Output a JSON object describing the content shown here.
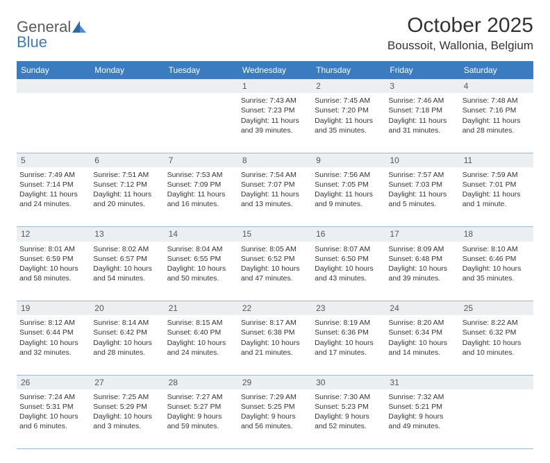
{
  "logo": {
    "part1": "General",
    "part2": "Blue"
  },
  "title": "October 2025",
  "location": "Boussoit, Wallonia, Belgium",
  "colors": {
    "header_bg": "#3b7bbf",
    "header_text": "#ffffff",
    "daynum_bg": "#eceff2",
    "border": "#9db8d4",
    "text": "#333333"
  },
  "day_names": [
    "Sunday",
    "Monday",
    "Tuesday",
    "Wednesday",
    "Thursday",
    "Friday",
    "Saturday"
  ],
  "weeks": [
    {
      "nums": [
        "",
        "",
        "",
        "1",
        "2",
        "3",
        "4"
      ],
      "cells": [
        {
          "lines": []
        },
        {
          "lines": []
        },
        {
          "lines": []
        },
        {
          "lines": [
            "Sunrise: 7:43 AM",
            "Sunset: 7:23 PM",
            "Daylight: 11 hours",
            "and 39 minutes."
          ]
        },
        {
          "lines": [
            "Sunrise: 7:45 AM",
            "Sunset: 7:20 PM",
            "Daylight: 11 hours",
            "and 35 minutes."
          ]
        },
        {
          "lines": [
            "Sunrise: 7:46 AM",
            "Sunset: 7:18 PM",
            "Daylight: 11 hours",
            "and 31 minutes."
          ]
        },
        {
          "lines": [
            "Sunrise: 7:48 AM",
            "Sunset: 7:16 PM",
            "Daylight: 11 hours",
            "and 28 minutes."
          ]
        }
      ]
    },
    {
      "nums": [
        "5",
        "6",
        "7",
        "8",
        "9",
        "10",
        "11"
      ],
      "cells": [
        {
          "lines": [
            "Sunrise: 7:49 AM",
            "Sunset: 7:14 PM",
            "Daylight: 11 hours",
            "and 24 minutes."
          ]
        },
        {
          "lines": [
            "Sunrise: 7:51 AM",
            "Sunset: 7:12 PM",
            "Daylight: 11 hours",
            "and 20 minutes."
          ]
        },
        {
          "lines": [
            "Sunrise: 7:53 AM",
            "Sunset: 7:09 PM",
            "Daylight: 11 hours",
            "and 16 minutes."
          ]
        },
        {
          "lines": [
            "Sunrise: 7:54 AM",
            "Sunset: 7:07 PM",
            "Daylight: 11 hours",
            "and 13 minutes."
          ]
        },
        {
          "lines": [
            "Sunrise: 7:56 AM",
            "Sunset: 7:05 PM",
            "Daylight: 11 hours",
            "and 9 minutes."
          ]
        },
        {
          "lines": [
            "Sunrise: 7:57 AM",
            "Sunset: 7:03 PM",
            "Daylight: 11 hours",
            "and 5 minutes."
          ]
        },
        {
          "lines": [
            "Sunrise: 7:59 AM",
            "Sunset: 7:01 PM",
            "Daylight: 11 hours",
            "and 1 minute."
          ]
        }
      ]
    },
    {
      "nums": [
        "12",
        "13",
        "14",
        "15",
        "16",
        "17",
        "18"
      ],
      "cells": [
        {
          "lines": [
            "Sunrise: 8:01 AM",
            "Sunset: 6:59 PM",
            "Daylight: 10 hours",
            "and 58 minutes."
          ]
        },
        {
          "lines": [
            "Sunrise: 8:02 AM",
            "Sunset: 6:57 PM",
            "Daylight: 10 hours",
            "and 54 minutes."
          ]
        },
        {
          "lines": [
            "Sunrise: 8:04 AM",
            "Sunset: 6:55 PM",
            "Daylight: 10 hours",
            "and 50 minutes."
          ]
        },
        {
          "lines": [
            "Sunrise: 8:05 AM",
            "Sunset: 6:52 PM",
            "Daylight: 10 hours",
            "and 47 minutes."
          ]
        },
        {
          "lines": [
            "Sunrise: 8:07 AM",
            "Sunset: 6:50 PM",
            "Daylight: 10 hours",
            "and 43 minutes."
          ]
        },
        {
          "lines": [
            "Sunrise: 8:09 AM",
            "Sunset: 6:48 PM",
            "Daylight: 10 hours",
            "and 39 minutes."
          ]
        },
        {
          "lines": [
            "Sunrise: 8:10 AM",
            "Sunset: 6:46 PM",
            "Daylight: 10 hours",
            "and 35 minutes."
          ]
        }
      ]
    },
    {
      "nums": [
        "19",
        "20",
        "21",
        "22",
        "23",
        "24",
        "25"
      ],
      "cells": [
        {
          "lines": [
            "Sunrise: 8:12 AM",
            "Sunset: 6:44 PM",
            "Daylight: 10 hours",
            "and 32 minutes."
          ]
        },
        {
          "lines": [
            "Sunrise: 8:14 AM",
            "Sunset: 6:42 PM",
            "Daylight: 10 hours",
            "and 28 minutes."
          ]
        },
        {
          "lines": [
            "Sunrise: 8:15 AM",
            "Sunset: 6:40 PM",
            "Daylight: 10 hours",
            "and 24 minutes."
          ]
        },
        {
          "lines": [
            "Sunrise: 8:17 AM",
            "Sunset: 6:38 PM",
            "Daylight: 10 hours",
            "and 21 minutes."
          ]
        },
        {
          "lines": [
            "Sunrise: 8:19 AM",
            "Sunset: 6:36 PM",
            "Daylight: 10 hours",
            "and 17 minutes."
          ]
        },
        {
          "lines": [
            "Sunrise: 8:20 AM",
            "Sunset: 6:34 PM",
            "Daylight: 10 hours",
            "and 14 minutes."
          ]
        },
        {
          "lines": [
            "Sunrise: 8:22 AM",
            "Sunset: 6:32 PM",
            "Daylight: 10 hours",
            "and 10 minutes."
          ]
        }
      ]
    },
    {
      "nums": [
        "26",
        "27",
        "28",
        "29",
        "30",
        "31",
        ""
      ],
      "cells": [
        {
          "lines": [
            "Sunrise: 7:24 AM",
            "Sunset: 5:31 PM",
            "Daylight: 10 hours",
            "and 6 minutes."
          ]
        },
        {
          "lines": [
            "Sunrise: 7:25 AM",
            "Sunset: 5:29 PM",
            "Daylight: 10 hours",
            "and 3 minutes."
          ]
        },
        {
          "lines": [
            "Sunrise: 7:27 AM",
            "Sunset: 5:27 PM",
            "Daylight: 9 hours",
            "and 59 minutes."
          ]
        },
        {
          "lines": [
            "Sunrise: 7:29 AM",
            "Sunset: 5:25 PM",
            "Daylight: 9 hours",
            "and 56 minutes."
          ]
        },
        {
          "lines": [
            "Sunrise: 7:30 AM",
            "Sunset: 5:23 PM",
            "Daylight: 9 hours",
            "and 52 minutes."
          ]
        },
        {
          "lines": [
            "Sunrise: 7:32 AM",
            "Sunset: 5:21 PM",
            "Daylight: 9 hours",
            "and 49 minutes."
          ]
        },
        {
          "lines": []
        }
      ]
    }
  ]
}
